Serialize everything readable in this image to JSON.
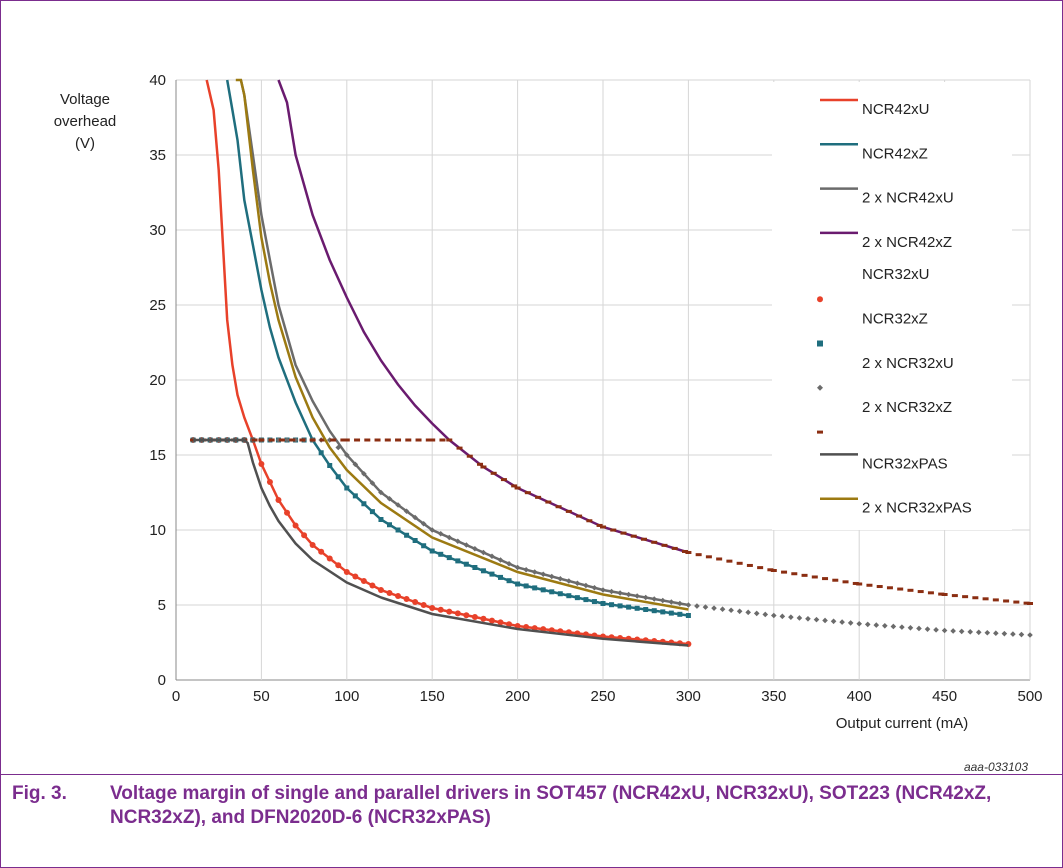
{
  "chart_data": {
    "type": "line",
    "ylabel": "Voltage\noverhead\n(V)",
    "xlabel": "Output current (mA)",
    "xlim": [
      0,
      500
    ],
    "ylim": [
      0,
      40
    ],
    "xticks": [
      0,
      50,
      100,
      150,
      200,
      250,
      300,
      350,
      400,
      450,
      500
    ],
    "yticks": [
      0,
      5,
      10,
      15,
      20,
      25,
      30,
      35,
      40
    ],
    "grid": true,
    "legend_position": "right",
    "series": [
      {
        "name": "NCR42xU",
        "style": "line",
        "color": "#e8412a",
        "x": [
          18,
          22,
          25,
          28,
          30,
          33,
          36,
          40,
          45,
          50,
          60,
          70,
          80,
          100,
          120,
          150,
          200,
          250,
          300
        ],
        "y": [
          40,
          38,
          34,
          28,
          24,
          21,
          19,
          17.5,
          16,
          14.4,
          12,
          10.3,
          9,
          7.2,
          6,
          4.8,
          3.6,
          2.9,
          2.4
        ]
      },
      {
        "name": "NCR42xZ",
        "style": "line",
        "color": "#1f6e7e",
        "x": [
          30,
          33,
          36,
          40,
          45,
          50,
          55,
          60,
          70,
          80,
          90,
          100,
          120,
          150,
          200,
          250,
          300
        ],
        "y": [
          40,
          38,
          36,
          32,
          29,
          26,
          23.5,
          21.5,
          18.5,
          16,
          14.3,
          12.8,
          10.7,
          8.6,
          6.4,
          5.1,
          4.3
        ]
      },
      {
        "name": "2 x NCR42xU",
        "style": "line",
        "color": "#6b6b6b",
        "x": [
          38,
          40,
          45,
          50,
          55,
          60,
          70,
          80,
          90,
          100,
          120,
          150,
          200,
          250,
          300
        ],
        "y": [
          40,
          39,
          35,
          31,
          28,
          25,
          21,
          18.6,
          16.6,
          15,
          12.5,
          10,
          7.5,
          6,
          5
        ]
      },
      {
        "name": "2 x NCR42xZ",
        "style": "line",
        "color": "#6a1b6f",
        "x": [
          60,
          65,
          70,
          80,
          90,
          100,
          110,
          120,
          130,
          140,
          150,
          160,
          180,
          200,
          250,
          300
        ],
        "y": [
          40,
          38.5,
          35,
          31,
          28,
          25.5,
          23.2,
          21.3,
          19.7,
          18.3,
          17.1,
          16,
          14.2,
          12.8,
          10.2,
          8.5
        ]
      },
      {
        "name": "NCR32xU",
        "style": "dots",
        "color": "#e8412a",
        "x": [
          10,
          20,
          30,
          40,
          45,
          50,
          60,
          70,
          80,
          100,
          120,
          150,
          200,
          250,
          300
        ],
        "y": [
          16,
          16,
          16,
          16,
          16,
          14.4,
          12,
          10.3,
          9,
          7.2,
          6,
          4.8,
          3.6,
          2.9,
          2.4
        ]
      },
      {
        "name": "NCR32xZ",
        "style": "squares",
        "color": "#1f6e7e",
        "x": [
          10,
          20,
          40,
          60,
          80,
          90,
          100,
          120,
          150,
          200,
          250,
          300
        ],
        "y": [
          16,
          16,
          16,
          16,
          16,
          14.3,
          12.8,
          10.7,
          8.6,
          6.4,
          5.1,
          4.3
        ]
      },
      {
        "name": "2 x NCR32xU",
        "style": "diamonds",
        "color": "#6b6b6b",
        "x": [
          10,
          50,
          90,
          100,
          120,
          150,
          200,
          250,
          300,
          350,
          400,
          450,
          500
        ],
        "y": [
          16,
          16,
          16,
          15,
          12.5,
          10,
          7.5,
          6,
          5,
          4.3,
          3.75,
          3.3,
          3
        ]
      },
      {
        "name": "2 x NCR32xZ",
        "style": "dashes",
        "color": "#8b2e12",
        "x": [
          10,
          50,
          100,
          150,
          160,
          180,
          200,
          250,
          300,
          350,
          400,
          450,
          500
        ],
        "y": [
          16,
          16,
          16,
          16,
          16,
          14.2,
          12.8,
          10.2,
          8.5,
          7.3,
          6.4,
          5.7,
          5.1
        ]
      },
      {
        "name": "NCR32xPAS",
        "style": "line",
        "color": "#505050",
        "x": [
          10,
          20,
          30,
          40,
          42,
          45,
          50,
          55,
          60,
          70,
          80,
          100,
          120,
          150,
          200,
          250,
          300
        ],
        "y": [
          16,
          16,
          16,
          16,
          15.8,
          14.5,
          12.8,
          11.6,
          10.6,
          9.1,
          8,
          6.5,
          5.5,
          4.4,
          3.4,
          2.75,
          2.3
        ]
      },
      {
        "name": "2 x NCR32xPAS",
        "style": "line",
        "color": "#9c7a12",
        "x": [
          35,
          38,
          40,
          45,
          50,
          55,
          60,
          70,
          80,
          90,
          100,
          120,
          150,
          200,
          250,
          300
        ],
        "y": [
          40,
          40,
          39,
          34,
          29.5,
          26.5,
          24,
          20.2,
          17.5,
          15.5,
          14,
          11.8,
          9.5,
          7.2,
          5.7,
          4.7
        ]
      }
    ]
  },
  "figure_id": "aaa-033103",
  "caption": {
    "number": "Fig. 3.",
    "text": "Voltage margin of single and parallel drivers in SOT457 (NCR42xU, NCR32xU), SOT223 (NCR42xZ, NCR32xZ), and DFN2020D-6 (NCR32xPAS)"
  }
}
